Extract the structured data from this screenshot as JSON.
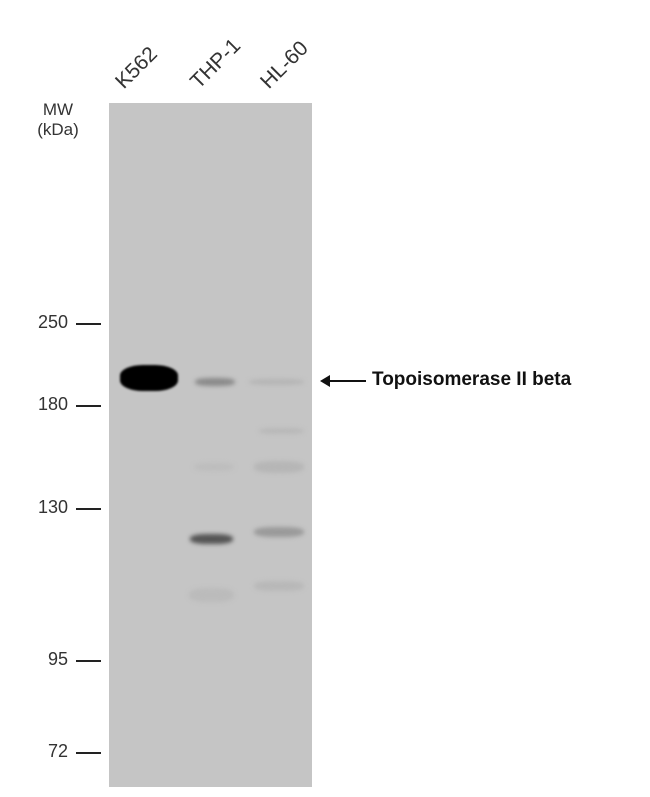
{
  "lanes": [
    "K562",
    "THP-1",
    "HL-60"
  ],
  "mw_label": {
    "line1": "MW",
    "line2": "(kDa)"
  },
  "markers": [
    "250",
    "180",
    "130",
    "95",
    "72"
  ],
  "target": {
    "label": "Topoisomerase II beta",
    "arrow_icon": "left-arrow-icon"
  },
  "colors": {
    "membrane": "#c5c5c5",
    "band": "#000000"
  }
}
